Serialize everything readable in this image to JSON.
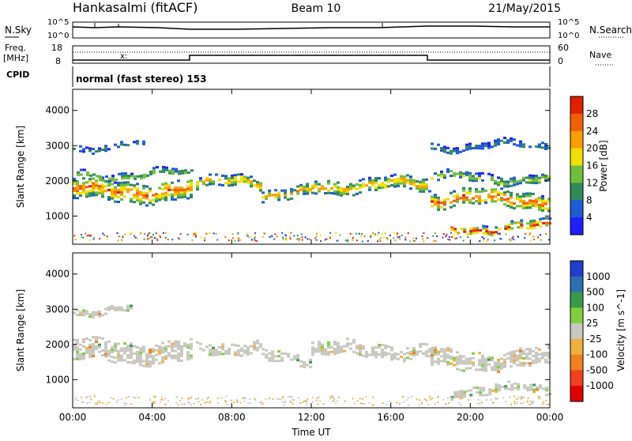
{
  "header": {
    "station": "Hankasalmi (fitACF)",
    "beam": "Beam 10",
    "date": "21/May/2015"
  },
  "noise_panel": {
    "left_label": "N.Sky",
    "right_label": "N.Search",
    "tick_top": "10^5",
    "tick_bottom": "10^0"
  },
  "freq_panel": {
    "left_label_top": "Freq.",
    "left_label_unit": "[MHz]",
    "right_label": "Nave",
    "left_tick_top": "18",
    "left_tick_bottom": "8",
    "right_tick_top": "60",
    "right_tick_bottom": "0"
  },
  "cpid": {
    "label": "CPID",
    "value": "normal (fast stereo) 153"
  },
  "chart_data": [
    {
      "type": "heatmap",
      "quantity": "Power",
      "ylabel": "Slant Range [km]",
      "xlabel": "",
      "x_range_hours": [
        0,
        24
      ],
      "ylim": [
        200,
        4600
      ],
      "y_ticks": [
        "1000",
        "2000",
        "3000",
        "4000"
      ],
      "x_ticks": [
        "00:00",
        "04:00",
        "08:00",
        "12:00",
        "16:00",
        "20:00",
        "00:00"
      ],
      "colorbar": {
        "label": "Power [dB]",
        "ticks": [
          "4",
          "8",
          "12",
          "16",
          "20",
          "24",
          "28"
        ],
        "colors": [
          "#1f1fff",
          "#1e5bd4",
          "#2f8a5a",
          "#6fbf3a",
          "#f0e000",
          "#f7a000",
          "#f06000",
          "#e02000"
        ]
      },
      "bands": [
        {
          "t0": 0.0,
          "t1": 6.0,
          "center": 1750,
          "width": 550,
          "level": 0.85
        },
        {
          "t0": 0.2,
          "t1": 6.0,
          "center": 2200,
          "width": 200,
          "level": 0.45
        },
        {
          "t0": 0.0,
          "t1": 3.5,
          "center": 3000,
          "width": 150,
          "level": 0.25
        },
        {
          "t0": 6.2,
          "t1": 9.5,
          "center": 1950,
          "width": 300,
          "level": 0.7
        },
        {
          "t0": 9.5,
          "t1": 12.0,
          "center": 1650,
          "width": 280,
          "level": 0.7
        },
        {
          "t0": 12.0,
          "t1": 18.0,
          "center": 1900,
          "width": 350,
          "level": 0.75
        },
        {
          "t0": 18.0,
          "t1": 24.0,
          "center": 1500,
          "width": 450,
          "level": 0.9
        },
        {
          "t0": 18.0,
          "t1": 24.0,
          "center": 2100,
          "width": 250,
          "level": 0.5
        },
        {
          "t0": 19.0,
          "t1": 24.0,
          "center": 700,
          "width": 260,
          "level": 0.95
        },
        {
          "t0": 18.0,
          "t1": 24.0,
          "center": 3000,
          "width": 200,
          "level": 0.25
        }
      ]
    },
    {
      "type": "heatmap",
      "quantity": "Velocity",
      "ylabel": "Slant Range [km]",
      "xlabel": "Time UT",
      "x_range_hours": [
        0,
        24
      ],
      "ylim": [
        200,
        4600
      ],
      "y_ticks": [
        "1000",
        "2000",
        "3000",
        "4000"
      ],
      "x_ticks": [
        "00:00",
        "04:00",
        "08:00",
        "12:00",
        "16:00",
        "20:00",
        "00:00"
      ],
      "colorbar": {
        "label": "Velocity [m s^-1]",
        "ticks": [
          "1000",
          "500",
          "100",
          "25",
          "-25",
          "-100",
          "-500",
          "-1000"
        ],
        "colors": [
          "#1f3fd0",
          "#2e6fb0",
          "#3a9a4a",
          "#7fd040",
          "#c8c8c0",
          "#f0b040",
          "#f08020",
          "#f04020",
          "#e00000"
        ]
      },
      "bands": [
        {
          "t0": 0.0,
          "t1": 6.0,
          "center": 1800,
          "width": 600,
          "level": 0.5
        },
        {
          "t0": 6.2,
          "t1": 9.5,
          "center": 1950,
          "width": 320,
          "level": 0.5
        },
        {
          "t0": 9.5,
          "t1": 12.0,
          "center": 1650,
          "width": 300,
          "level": 0.5
        },
        {
          "t0": 12.0,
          "t1": 18.0,
          "center": 1850,
          "width": 380,
          "level": 0.5
        },
        {
          "t0": 18.0,
          "t1": 24.0,
          "center": 1600,
          "width": 500,
          "level": 0.5
        },
        {
          "t0": 19.0,
          "t1": 24.0,
          "center": 700,
          "width": 250,
          "level": 0.5
        },
        {
          "t0": 0.0,
          "t1": 3.0,
          "center": 3000,
          "width": 150,
          "level": 0.5
        }
      ]
    }
  ]
}
